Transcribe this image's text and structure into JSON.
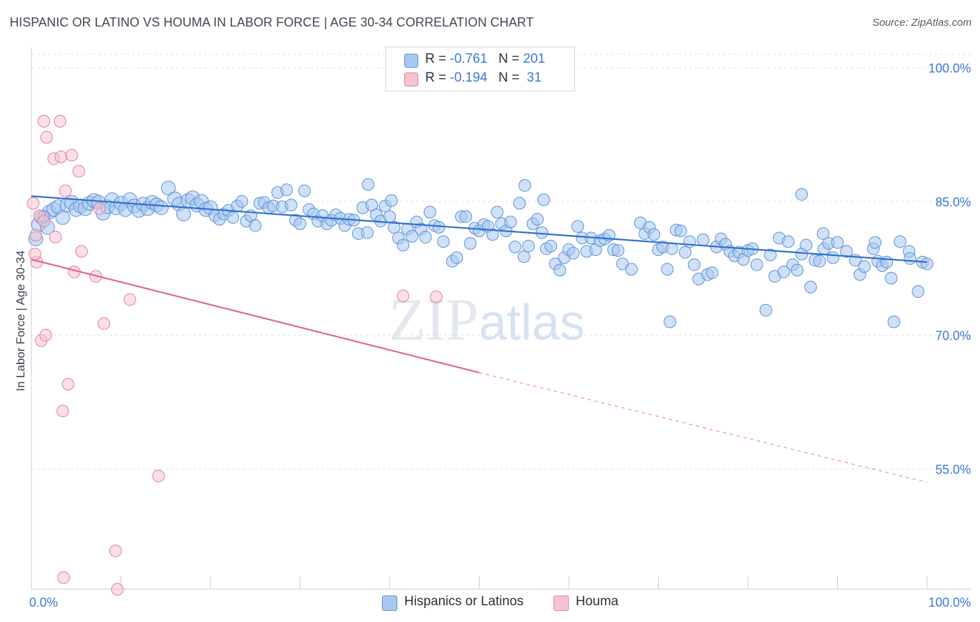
{
  "title": "HISPANIC OR LATINO VS HOUMA IN LABOR FORCE | AGE 30-34 CORRELATION CHART",
  "source": "Source: ZipAtlas.com",
  "watermark": {
    "zip": "ZIP",
    "atlas": "atlas"
  },
  "legend_top": {
    "rows": [
      {
        "r_label": "R = ",
        "r_value": "-0.761",
        "n_label": "N = ",
        "n_value": "201",
        "color": "#a8c8f0"
      },
      {
        "r_label": "R = ",
        "r_value": "-0.194",
        "n_label": "N = ",
        "n_value": " 31",
        "color": "#f7b8cb"
      }
    ]
  },
  "legend_bottom": [
    {
      "label": "Hispanics or Latinos",
      "color": "#a8c8f0"
    },
    {
      "label": "Houma",
      "color": "#f7b8cb"
    }
  ],
  "colors": {
    "blue_fill": "#a8c8f0",
    "blue_stroke": "#5b8fd6",
    "blue_line": "#2f6fd0",
    "pink_fill": "#f7c3d2",
    "pink_stroke": "#e07fa0",
    "pink_line": "#e0668f",
    "tick_label": "#3a78d4",
    "grid": "#dde1e8"
  },
  "chart_data": {
    "type": "scatter",
    "xlabel": "",
    "ylabel": "In Labor Force | Age 30-34",
    "xlim": [
      0,
      100
    ],
    "ylim": [
      41.5,
      101.5
    ],
    "x_tick_labels": [
      {
        "value": 0,
        "label": "0.0%"
      },
      {
        "value": 100,
        "label": "100.0%"
      }
    ],
    "y_tick_labels": [
      {
        "value": 100,
        "label": "100.0%"
      },
      {
        "value": 85,
        "label": "85.0%"
      },
      {
        "value": 70,
        "label": "70.0%"
      },
      {
        "value": 55,
        "label": "55.0%"
      }
    ],
    "grid": true,
    "series": [
      {
        "name": "Hispanics or Latinos",
        "trend": {
          "x0": 0,
          "y0": 85.6,
          "x1": 100,
          "y1": 78.2
        },
        "points": [
          [
            0.5,
            80.8
          ],
          [
            0.8,
            82.4
          ],
          [
            1.2,
            83.2
          ],
          [
            1.8,
            82.1
          ],
          [
            2,
            83.8
          ],
          [
            2.5,
            84.1
          ],
          [
            3,
            84.4
          ],
          [
            3.5,
            83.2
          ],
          [
            4,
            84.6
          ],
          [
            4.5,
            84.9
          ],
          [
            5,
            84.1
          ],
          [
            5.5,
            84.5
          ],
          [
            6,
            84.2
          ],
          [
            6.5,
            84.8
          ],
          [
            7,
            85.1
          ],
          [
            7.5,
            84.9
          ],
          [
            8,
            83.7
          ],
          [
            8.5,
            84.4
          ],
          [
            9,
            85.2
          ],
          [
            9.5,
            84.3
          ],
          [
            10,
            84.8
          ],
          [
            10.5,
            84.1
          ],
          [
            11,
            85.2
          ],
          [
            11.5,
            84.5
          ],
          [
            12,
            84.0
          ],
          [
            12.5,
            84.7
          ],
          [
            13,
            84.2
          ],
          [
            13.5,
            84.9
          ],
          [
            14,
            84.6
          ],
          [
            14.5,
            84.3
          ],
          [
            15.3,
            86.5
          ],
          [
            16,
            85.3
          ],
          [
            16.5,
            84.7
          ],
          [
            17,
            83.6
          ],
          [
            17.5,
            85.1
          ],
          [
            18,
            85.4
          ],
          [
            18.5,
            84.6
          ],
          [
            19,
            85.0
          ],
          [
            19.5,
            84.1
          ],
          [
            20,
            84.3
          ],
          [
            20.5,
            83.4
          ],
          [
            21,
            83.0
          ],
          [
            21.5,
            83.6
          ],
          [
            22,
            84.0
          ],
          [
            22.5,
            83.2
          ],
          [
            23,
            84.5
          ],
          [
            23.5,
            85.0
          ],
          [
            24,
            82.8
          ],
          [
            24.5,
            83.4
          ],
          [
            25,
            82.3
          ],
          [
            25.5,
            84.8
          ],
          [
            26,
            84.9
          ],
          [
            26.5,
            84.3
          ],
          [
            27,
            84.5
          ],
          [
            27.5,
            86.0
          ],
          [
            28,
            84.4
          ],
          [
            28.5,
            86.3
          ],
          [
            29,
            84.6
          ],
          [
            29.5,
            82.9
          ],
          [
            30,
            82.5
          ],
          [
            30.5,
            86.2
          ],
          [
            31,
            84.1
          ],
          [
            31.5,
            83.6
          ],
          [
            32,
            82.8
          ],
          [
            32.5,
            83.4
          ],
          [
            33,
            82.5
          ],
          [
            33.5,
            82.9
          ],
          [
            34,
            83.5
          ],
          [
            34.5,
            83.1
          ],
          [
            35,
            82.3
          ],
          [
            35.5,
            83.0
          ],
          [
            36,
            82.9
          ],
          [
            36.5,
            81.4
          ],
          [
            37,
            84.3
          ],
          [
            37.5,
            81.5
          ],
          [
            38,
            84.6
          ],
          [
            38.5,
            83.5
          ],
          [
            39,
            82.8
          ],
          [
            39.5,
            84.5
          ],
          [
            40,
            83.3
          ],
          [
            40.5,
            82.1
          ],
          [
            41,
            80.9
          ],
          [
            41.5,
            80.1
          ],
          [
            42,
            81.9
          ],
          [
            42.5,
            81.1
          ],
          [
            43,
            82.7
          ],
          [
            43.5,
            81.9
          ],
          [
            44,
            81.0
          ],
          [
            44.5,
            83.8
          ],
          [
            45,
            82.3
          ],
          [
            45.5,
            82.1
          ],
          [
            46,
            80.5
          ],
          [
            47,
            78.3
          ],
          [
            47.5,
            78.7
          ],
          [
            48,
            83.3
          ],
          [
            48.5,
            83.3
          ],
          [
            49,
            80.3
          ],
          [
            49.5,
            82.0
          ],
          [
            50,
            81.7
          ],
          [
            50.5,
            82.4
          ],
          [
            51,
            82.2
          ],
          [
            51.5,
            81.3
          ],
          [
            52,
            83.8
          ],
          [
            52.5,
            82.5
          ],
          [
            53,
            81.7
          ],
          [
            53.5,
            82.7
          ],
          [
            54,
            79.9
          ],
          [
            54.5,
            84.8
          ],
          [
            55,
            78.8
          ],
          [
            55.5,
            80.0
          ],
          [
            56,
            82.5
          ],
          [
            56.5,
            83.0
          ],
          [
            57,
            81.5
          ],
          [
            57.5,
            79.7
          ],
          [
            58,
            80.0
          ],
          [
            58.5,
            78.0
          ],
          [
            59,
            77.3
          ],
          [
            59.5,
            78.7
          ],
          [
            60,
            79.6
          ],
          [
            60.5,
            79.2
          ],
          [
            61,
            82.2
          ],
          [
            61.5,
            80.9
          ],
          [
            62,
            79.4
          ],
          [
            62.5,
            80.9
          ],
          [
            63,
            79.6
          ],
          [
            63.5,
            80.6
          ],
          [
            64,
            80.8
          ],
          [
            64.5,
            81.2
          ],
          [
            65,
            79.6
          ],
          [
            65.5,
            79.5
          ],
          [
            66,
            78.0
          ],
          [
            67,
            77.4
          ],
          [
            68,
            82.6
          ],
          [
            68.5,
            81.4
          ],
          [
            69,
            82.1
          ],
          [
            69.5,
            81.3
          ],
          [
            70,
            79.6
          ],
          [
            70.5,
            79.9
          ],
          [
            71,
            77.4
          ],
          [
            71.5,
            79.7
          ],
          [
            72,
            81.8
          ],
          [
            72.5,
            81.7
          ],
          [
            73,
            79.3
          ],
          [
            73.5,
            80.5
          ],
          [
            74,
            77.9
          ],
          [
            74.5,
            76.3
          ],
          [
            75,
            80.7
          ],
          [
            75.5,
            76.8
          ],
          [
            76,
            77.0
          ],
          [
            76.5,
            79.9
          ],
          [
            77,
            80.8
          ],
          [
            77.5,
            80.2
          ],
          [
            78,
            79.4
          ],
          [
            78.5,
            78.9
          ],
          [
            79,
            79.3
          ],
          [
            79.5,
            78.5
          ],
          [
            80,
            79.5
          ],
          [
            80.5,
            79.7
          ],
          [
            81,
            77.9
          ],
          [
            82,
            72.8
          ],
          [
            82.5,
            79.0
          ],
          [
            83,
            76.6
          ],
          [
            83.5,
            80.9
          ],
          [
            84,
            77.1
          ],
          [
            84.5,
            80.5
          ],
          [
            85,
            77.9
          ],
          [
            85.5,
            77.3
          ],
          [
            86,
            79.1
          ],
          [
            86.5,
            80.1
          ],
          [
            87,
            75.4
          ],
          [
            87.5,
            78.4
          ],
          [
            88,
            78.3
          ],
          [
            88.5,
            79.7
          ],
          [
            89,
            80.3
          ],
          [
            89.5,
            78.7
          ],
          [
            90,
            80.4
          ],
          [
            91,
            79.4
          ],
          [
            92,
            78.4
          ],
          [
            92.5,
            76.8
          ],
          [
            93,
            77.7
          ],
          [
            94,
            79.7
          ],
          [
            94.5,
            78.3
          ],
          [
            95,
            77.8
          ],
          [
            95.5,
            78.2
          ],
          [
            96,
            76.4
          ],
          [
            97,
            80.5
          ],
          [
            98,
            79.4
          ],
          [
            99,
            74.9
          ],
          [
            99.5,
            78.2
          ],
          [
            100,
            78.0
          ],
          [
            55.1,
            86.8
          ],
          [
            86,
            85.8
          ],
          [
            57.2,
            85.2
          ],
          [
            40.2,
            85.1
          ],
          [
            37.6,
            86.9
          ],
          [
            88.4,
            81.4
          ],
          [
            94.2,
            80.4
          ],
          [
            98.1,
            78.6
          ],
          [
            71.3,
            71.5
          ],
          [
            96.3,
            71.5
          ],
          [
            1.4,
            83.3
          ]
        ]
      },
      {
        "name": "Houma",
        "trend": {
          "x0": 0,
          "y0": 78.5,
          "x1": 50,
          "y1": 65.8,
          "dash_x1": 100,
          "dash_y1": 53.5
        },
        "points": [
          [
            0.2,
            84.8
          ],
          [
            0.5,
            81.2
          ],
          [
            0.6,
            78.2
          ],
          [
            0.9,
            83.4
          ],
          [
            1.1,
            69.4
          ],
          [
            1.4,
            94.0
          ],
          [
            1.6,
            70.0
          ],
          [
            1.7,
            92.2
          ],
          [
            2.5,
            89.8
          ],
          [
            2.7,
            81.0
          ],
          [
            3.2,
            94.0
          ],
          [
            3.3,
            90.0
          ],
          [
            3.5,
            61.5
          ],
          [
            3.8,
            86.2
          ],
          [
            4.1,
            64.5
          ],
          [
            4.5,
            90.2
          ],
          [
            4.8,
            77.1
          ],
          [
            5.3,
            88.4
          ],
          [
            5.6,
            79.4
          ],
          [
            7.2,
            76.6
          ],
          [
            7.6,
            84.2
          ],
          [
            8.1,
            71.3
          ],
          [
            9.4,
            45.8
          ],
          [
            9.6,
            41.5
          ],
          [
            11,
            74.0
          ],
          [
            14.2,
            54.2
          ],
          [
            41.5,
            74.4
          ],
          [
            45.2,
            74.3
          ],
          [
            1.4,
            82.8
          ],
          [
            0.4,
            79.1
          ],
          [
            3.6,
            42.8
          ]
        ]
      }
    ]
  }
}
